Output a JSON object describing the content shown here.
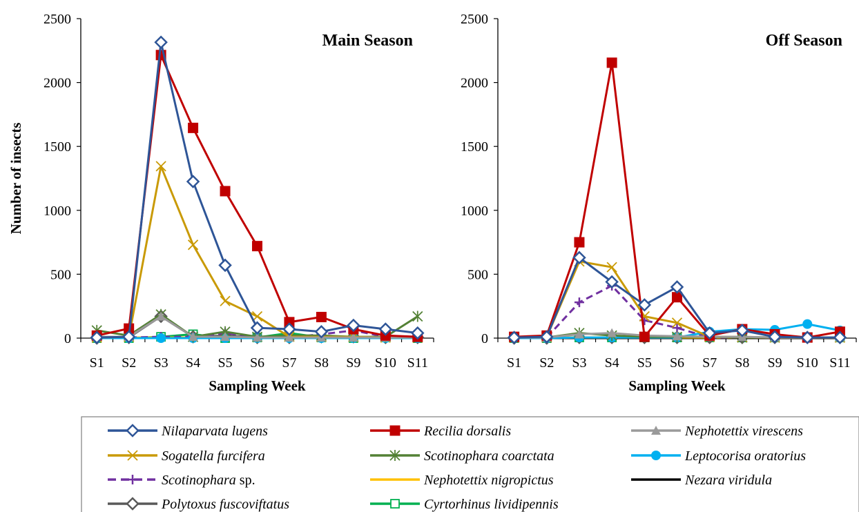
{
  "chart_data": [
    {
      "type": "line",
      "title": "Main Season",
      "xlabel": "Sampling Week",
      "ylabel": "Number of insects",
      "ylim": [
        0,
        2500
      ],
      "yticks": [
        0,
        500,
        1000,
        1500,
        2000,
        2500
      ],
      "categories": [
        "S1",
        "S2",
        "S3",
        "S4",
        "S5",
        "S6",
        "S7",
        "S8",
        "S9",
        "S10",
        "S11"
      ],
      "grid": false,
      "series": [
        {
          "name": "Nilaparvata lugens",
          "values": [
            5,
            10,
            2315,
            1225,
            570,
            80,
            70,
            50,
            100,
            70,
            40
          ]
        },
        {
          "name": "Recilia dorsalis",
          "values": [
            20,
            75,
            2215,
            1645,
            1150,
            720,
            125,
            165,
            70,
            20,
            10
          ]
        },
        {
          "name": "Nephotettix virescens",
          "values": [
            10,
            10,
            170,
            10,
            10,
            5,
            5,
            5,
            5,
            5,
            5
          ]
        },
        {
          "name": "Sogatella furcifera",
          "values": [
            5,
            10,
            1345,
            730,
            290,
            170,
            10,
            10,
            10,
            5,
            5
          ]
        },
        {
          "name": "Scotinophara coarctata",
          "values": [
            60,
            20,
            185,
            10,
            50,
            10,
            20,
            20,
            10,
            10,
            170
          ]
        },
        {
          "name": "Leptocorisa oratorius",
          "values": [
            0,
            0,
            0,
            0,
            0,
            0,
            0,
            0,
            0,
            0,
            0
          ]
        },
        {
          "name": "Scotinophara sp.",
          "values": [
            5,
            5,
            10,
            10,
            40,
            10,
            5,
            30,
            60,
            10,
            5
          ]
        },
        {
          "name": "Nephotettix nigropictus",
          "values": [
            5,
            5,
            5,
            5,
            5,
            5,
            5,
            5,
            5,
            5,
            5
          ]
        },
        {
          "name": "Nezara viridula",
          "values": [
            0,
            0,
            0,
            0,
            0,
            0,
            0,
            0,
            0,
            0,
            0
          ]
        },
        {
          "name": "Polytoxus fuscoviftatus",
          "values": [
            0,
            5,
            170,
            10,
            20,
            5,
            5,
            10,
            10,
            5,
            5
          ]
        },
        {
          "name": "Cyrtorhinus lividipennis",
          "values": [
            0,
            0,
            10,
            30,
            0,
            5,
            40,
            5,
            0,
            5,
            0
          ]
        }
      ]
    },
    {
      "type": "line",
      "title": "Off Season",
      "xlabel": "Sampling Week",
      "ylabel": "",
      "ylim": [
        0,
        2500
      ],
      "yticks": [
        0,
        500,
        1000,
        1500,
        2000,
        2500
      ],
      "categories": [
        "S1",
        "S2",
        "S3",
        "S4",
        "S5",
        "S6",
        "S7",
        "S8",
        "S9",
        "S10",
        "S11"
      ],
      "grid": false,
      "series": [
        {
          "name": "Nilaparvata lugens",
          "values": [
            5,
            10,
            630,
            440,
            260,
            400,
            40,
            60,
            10,
            5,
            5
          ]
        },
        {
          "name": "Recilia dorsalis",
          "values": [
            10,
            20,
            750,
            2155,
            10,
            320,
            20,
            70,
            30,
            5,
            50
          ]
        },
        {
          "name": "Nephotettix virescens",
          "values": [
            5,
            5,
            30,
            40,
            20,
            15,
            10,
            10,
            5,
            5,
            5
          ]
        },
        {
          "name": "Sogatella furcifera",
          "values": [
            5,
            10,
            600,
            555,
            170,
            120,
            10,
            10,
            5,
            5,
            5
          ]
        },
        {
          "name": "Scotinophara coarctata",
          "values": [
            5,
            5,
            40,
            20,
            10,
            10,
            10,
            5,
            5,
            5,
            5
          ]
        },
        {
          "name": "Leptocorisa oratorius",
          "values": [
            0,
            0,
            5,
            5,
            5,
            5,
            50,
            70,
            65,
            110,
            60
          ]
        },
        {
          "name": "Scotinophara sp.",
          "values": [
            5,
            5,
            280,
            410,
            140,
            80,
            5,
            5,
            5,
            5,
            5
          ]
        },
        {
          "name": "Nephotettix nigropictus",
          "values": [
            5,
            5,
            5,
            5,
            5,
            5,
            5,
            5,
            5,
            5,
            5
          ]
        },
        {
          "name": "Nezara viridula",
          "values": [
            0,
            0,
            0,
            0,
            0,
            0,
            0,
            0,
            0,
            0,
            0
          ]
        },
        {
          "name": "Polytoxus fuscoviftatus",
          "values": [
            0,
            0,
            5,
            5,
            5,
            5,
            5,
            5,
            5,
            5,
            5
          ]
        },
        {
          "name": "Cyrtorhinus lividipennis",
          "values": [
            0,
            0,
            5,
            5,
            5,
            5,
            5,
            5,
            5,
            5,
            5
          ]
        }
      ]
    }
  ],
  "legend": {
    "position": "bottom",
    "items": [
      {
        "name": "Nilaparvata lugens",
        "label": "Nilaparvata lugens",
        "suffix": "",
        "color": "#2e5597",
        "marker": "diamond-open",
        "dash": false
      },
      {
        "name": "Recilia dorsalis",
        "label": "Recilia dorsalis",
        "suffix": "",
        "color": "#c00000",
        "marker": "square-filled",
        "dash": false
      },
      {
        "name": "Nephotettix virescens",
        "label": "Nephotettix virescens",
        "suffix": "",
        "color": "#9a9a9a",
        "marker": "triangle-filled",
        "dash": false
      },
      {
        "name": "Sogatella furcifera",
        "label": "Sogatella furcifera",
        "suffix": "",
        "color": "#c99a06",
        "marker": "x",
        "dash": false
      },
      {
        "name": "Scotinophara coarctata",
        "label": "Scotinophara coarctata",
        "suffix": "",
        "color": "#538135",
        "marker": "star",
        "dash": false
      },
      {
        "name": "Leptocorisa oratorius",
        "label": "Leptocorisa oratorius",
        "suffix": "",
        "color": "#00b0f0",
        "marker": "circle-filled",
        "dash": false
      },
      {
        "name": "Scotinophara sp.",
        "label": "Scotinophara",
        "suffix": " sp.",
        "color": "#7030a0",
        "marker": "plus",
        "dash": true
      },
      {
        "name": "Nephotettix nigropictus",
        "label": "Nephotettix nigropictus",
        "suffix": "",
        "color": "#ffc000",
        "marker": "dash",
        "dash": false
      },
      {
        "name": "Nezara viridula",
        "label": "Nezara viridula",
        "suffix": "",
        "color": "#000000",
        "marker": "dash",
        "dash": false
      },
      {
        "name": "Polytoxus fuscoviftatus",
        "label": "Polytoxus fuscoviftatus",
        "suffix": "",
        "color": "#595959",
        "marker": "diamond-open",
        "dash": false
      },
      {
        "name": "Cyrtorhinus lividipennis",
        "label": "Cyrtorhinus lividipennis",
        "suffix": "",
        "color": "#00b050",
        "marker": "square-open",
        "dash": false
      }
    ]
  }
}
